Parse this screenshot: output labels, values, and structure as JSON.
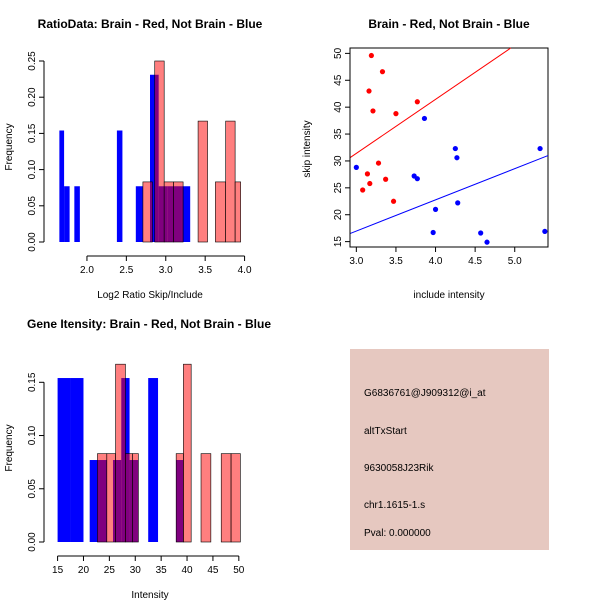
{
  "colors": {
    "red": "#ff0000",
    "blue": "#0000ff",
    "overlap": "#7f007f",
    "panel_bg": "#e6c8c0",
    "pval": "#8b0000"
  },
  "chart_data": [
    {
      "id": "ratio",
      "type": "bar",
      "title": "RatioData: Brain - Red, Not Brain - Blue",
      "xlabel": "Log2 Ratio Skip/Include",
      "ylabel": "Frequency",
      "xlim": [
        1.62,
        3.98
      ],
      "ylim": [
        0,
        0.25
      ],
      "xticks": [
        "2.0",
        "2.5",
        "3.0",
        "3.5",
        "4.0"
      ],
      "xtick_values": [
        2.0,
        2.5,
        3.0,
        3.5,
        4.0
      ],
      "yticks": [
        "0.00",
        "0.05",
        "0.10",
        "0.15",
        "0.20",
        "0.25"
      ],
      "ytick_values": [
        0,
        0.05,
        0.1,
        0.15,
        0.2,
        0.25
      ],
      "series": [
        {
          "name": "Not Brain",
          "color": "blue",
          "bins": [
            {
              "x0": 1.65,
              "x1": 1.71,
              "v": 0.154
            },
            {
              "x0": 1.71,
              "x1": 1.78,
              "v": 0.077
            },
            {
              "x0": 1.84,
              "x1": 1.91,
              "v": 0.077
            },
            {
              "x0": 2.38,
              "x1": 2.45,
              "v": 0.154
            },
            {
              "x0": 2.62,
              "x1": 2.71,
              "v": 0.077
            },
            {
              "x0": 2.8,
              "x1": 2.91,
              "v": 0.231
            },
            {
              "x0": 2.91,
              "x1": 3.02,
              "v": 0.077
            },
            {
              "x0": 3.02,
              "x1": 3.1,
              "v": 0.077
            },
            {
              "x0": 3.1,
              "x1": 3.2,
              "v": 0.077
            },
            {
              "x0": 3.2,
              "x1": 3.31,
              "v": 0.077
            }
          ]
        },
        {
          "name": "Brain",
          "color": "red",
          "bins": [
            {
              "x0": 2.71,
              "x1": 2.83,
              "v": 0.083
            },
            {
              "x0": 2.86,
              "x1": 2.98,
              "v": 0.25
            },
            {
              "x0": 2.98,
              "x1": 3.1,
              "v": 0.083
            },
            {
              "x0": 3.1,
              "x1": 3.22,
              "v": 0.083
            },
            {
              "x0": 3.41,
              "x1": 3.53,
              "v": 0.167
            },
            {
              "x0": 3.63,
              "x1": 3.76,
              "v": 0.083
            },
            {
              "x0": 3.76,
              "x1": 3.88,
              "v": 0.167
            },
            {
              "x0": 3.88,
              "x1": 3.95,
              "v": 0.083
            }
          ]
        }
      ]
    },
    {
      "id": "scatter",
      "type": "scatter",
      "title": "Brain - Red, Not Brain - Blue",
      "xlabel": "include intensity",
      "ylabel": "skip intensity",
      "xlim": [
        2.92,
        5.42
      ],
      "ylim": [
        14,
        51
      ],
      "xticks": [
        "3.0",
        "3.5",
        "4.0",
        "4.5",
        "5.0"
      ],
      "xtick_values": [
        3.0,
        3.5,
        4.0,
        4.5,
        5.0
      ],
      "yticks": [
        "15",
        "20",
        "25",
        "30",
        "35",
        "40",
        "45",
        "50"
      ],
      "ytick_values": [
        15,
        20,
        25,
        30,
        35,
        40,
        45,
        50
      ],
      "series": [
        {
          "name": "Brain",
          "color": "red",
          "points": [
            [
              3.08,
              24.6
            ],
            [
              3.14,
              27.6
            ],
            [
              3.16,
              43.0
            ],
            [
              3.17,
              25.8
            ],
            [
              3.19,
              49.6
            ],
            [
              3.21,
              39.3
            ],
            [
              3.28,
              29.6
            ],
            [
              3.33,
              46.6
            ],
            [
              3.37,
              26.6
            ],
            [
              3.47,
              22.5
            ],
            [
              3.5,
              38.8
            ],
            [
              3.77,
              41.0
            ]
          ]
        },
        {
          "name": "Not Brain",
          "color": "blue",
          "points": [
            [
              3.0,
              28.8
            ],
            [
              3.73,
              27.2
            ],
            [
              3.77,
              26.7
            ],
            [
              3.86,
              37.9
            ],
            [
              3.97,
              16.7
            ],
            [
              4.0,
              21.0
            ],
            [
              4.25,
              32.3
            ],
            [
              4.27,
              30.6
            ],
            [
              4.28,
              22.2
            ],
            [
              4.57,
              16.6
            ],
            [
              4.65,
              14.9
            ],
            [
              5.32,
              32.3
            ],
            [
              5.38,
              16.9
            ]
          ]
        }
      ],
      "fit_lines": [
        {
          "color": "red",
          "x1": 2.92,
          "y1": 30.6,
          "x2": 4.95,
          "y2": 51.0
        },
        {
          "color": "blue",
          "x1": 2.92,
          "y1": 16.5,
          "x2": 5.42,
          "y2": 31.0
        }
      ]
    },
    {
      "id": "gene",
      "type": "bar",
      "title": "Gene Itensity: Brain - Red, Not Brain - Blue",
      "xlabel": "Intensity",
      "ylabel": "Frequency",
      "xlim": [
        14.5,
        51
      ],
      "ylim": [
        0,
        0.17
      ],
      "xticks": [
        "15",
        "20",
        "25",
        "30",
        "35",
        "40",
        "45",
        "50"
      ],
      "xtick_values": [
        15,
        20,
        25,
        30,
        35,
        40,
        45,
        50
      ],
      "yticks": [
        "0.00",
        "0.05",
        "0.10",
        "0.15"
      ],
      "ytick_values": [
        0,
        0.05,
        0.1,
        0.15
      ],
      "series": [
        {
          "name": "Not Brain",
          "color": "blue",
          "bins": [
            {
              "x0": 15.0,
              "x1": 17.5,
              "v": 0.154
            },
            {
              "x0": 17.5,
              "x1": 20.0,
              "v": 0.154
            },
            {
              "x0": 21.2,
              "x1": 23.0,
              "v": 0.077
            },
            {
              "x0": 23.0,
              "x1": 24.5,
              "v": 0.077
            },
            {
              "x0": 25.7,
              "x1": 27.3,
              "v": 0.077
            },
            {
              "x0": 27.3,
              "x1": 28.9,
              "v": 0.154
            },
            {
              "x0": 28.9,
              "x1": 30.6,
              "v": 0.077
            },
            {
              "x0": 32.5,
              "x1": 34.4,
              "v": 0.154
            },
            {
              "x0": 37.9,
              "x1": 39.3,
              "v": 0.077
            }
          ]
        },
        {
          "name": "Brain",
          "color": "red",
          "bins": [
            {
              "x0": 22.7,
              "x1": 24.5,
              "v": 0.083
            },
            {
              "x0": 24.5,
              "x1": 26.2,
              "v": 0.083
            },
            {
              "x0": 26.2,
              "x1": 28.1,
              "v": 0.167
            },
            {
              "x0": 28.1,
              "x1": 29.5,
              "v": 0.083
            },
            {
              "x0": 29.5,
              "x1": 30.6,
              "v": 0.083
            },
            {
              "x0": 37.9,
              "x1": 39.3,
              "v": 0.083
            },
            {
              "x0": 39.3,
              "x1": 40.8,
              "v": 0.167
            },
            {
              "x0": 42.7,
              "x1": 44.6,
              "v": 0.083
            },
            {
              "x0": 46.6,
              "x1": 48.5,
              "v": 0.083
            },
            {
              "x0": 48.5,
              "x1": 50.3,
              "v": 0.083
            }
          ]
        }
      ]
    }
  ],
  "info_panel": {
    "probe": "G6836761@J909312@i_at",
    "event": "altTxStart",
    "gene": "9630058J23Rik",
    "location": "chr1.1615-1.s",
    "pval": "Pval: 0.000000"
  }
}
